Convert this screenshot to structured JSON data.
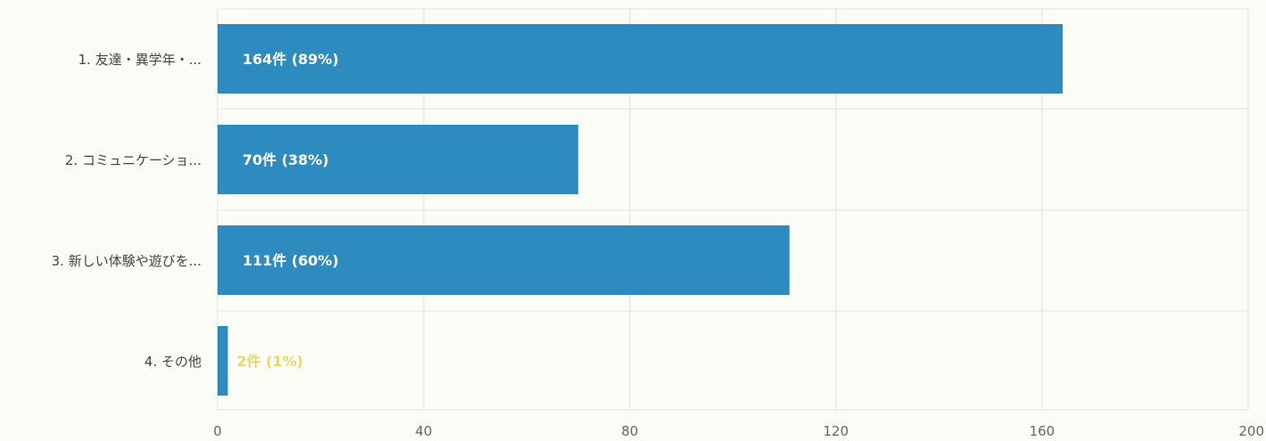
{
  "chart_data": {
    "type": "bar",
    "orientation": "horizontal",
    "categories": [
      "1. 友達・異学年・...",
      "2. コミュニケーショ...",
      "3. 新しい体験や遊びを...",
      "4. その他"
    ],
    "values": [
      164,
      70,
      111,
      2
    ],
    "data_labels": [
      "164件 (89%)",
      "70件 (38%)",
      "111件 (60%)",
      "2件 (1%)"
    ],
    "xlim": [
      0,
      200
    ],
    "x_ticks": [
      0,
      40,
      80,
      120,
      160,
      200
    ],
    "x_tick_labels": [
      "0",
      "40",
      "80",
      "120",
      "160",
      "200"
    ],
    "grid": true,
    "legend": "none",
    "colors": {
      "bar": "#2e8bc0",
      "label_inside": "#ffffff",
      "label_outside": "#e8d86a",
      "grid": "#e2e2da",
      "background": "#fcfcf6"
    }
  }
}
